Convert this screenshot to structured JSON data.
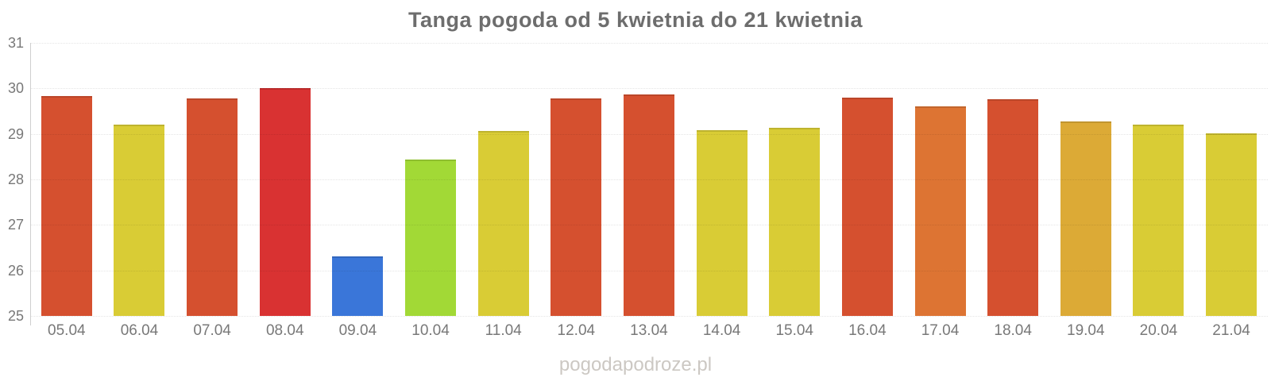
{
  "title": "Tanga pogoda od 5 kwietnia do 21 kwietnia",
  "watermark": "pogodapodroze.pl",
  "palette": {
    "red_orange": "#d5502f",
    "red": "#d93232",
    "orange": "#dd7433",
    "amber": "#dcaa36",
    "yellow": "#d9cc35",
    "green": "#a2d936",
    "blue": "#3a76d9",
    "axis_line": "#cfcfcf",
    "tick_text": "#787878",
    "title_text": "#6d6d6d",
    "watermark_text": "#ccc8c3"
  },
  "chart_data": {
    "type": "bar",
    "title": "Tanga pogoda od 5 kwietnia do 21 kwietnia",
    "xlabel": "",
    "ylabel": "",
    "ylim": [
      25,
      31
    ],
    "yticks": [
      25,
      26,
      27,
      28,
      29,
      30,
      31
    ],
    "grid": "horizontal-dotted",
    "legend": "none",
    "categories": [
      "05.04",
      "06.04",
      "07.04",
      "08.04",
      "09.04",
      "10.04",
      "11.04",
      "12.04",
      "13.04",
      "14.04",
      "15.04",
      "16.04",
      "17.04",
      "18.04",
      "19.04",
      "20.04",
      "21.04"
    ],
    "values": [
      29.83,
      29.21,
      29.78,
      30.0,
      26.3,
      28.44,
      29.06,
      29.78,
      29.86,
      29.08,
      29.13,
      29.79,
      29.6,
      29.77,
      29.28,
      29.21,
      29.02
    ],
    "bar_colors": [
      "#d5502f",
      "#d9cc35",
      "#d5502f",
      "#d93232",
      "#3a76d9",
      "#a2d936",
      "#d9cc35",
      "#d5502f",
      "#d5502f",
      "#d9cc35",
      "#d9cc35",
      "#d5502f",
      "#dd7433",
      "#d5502f",
      "#dcaa36",
      "#d9cc35",
      "#d9cc35"
    ]
  }
}
